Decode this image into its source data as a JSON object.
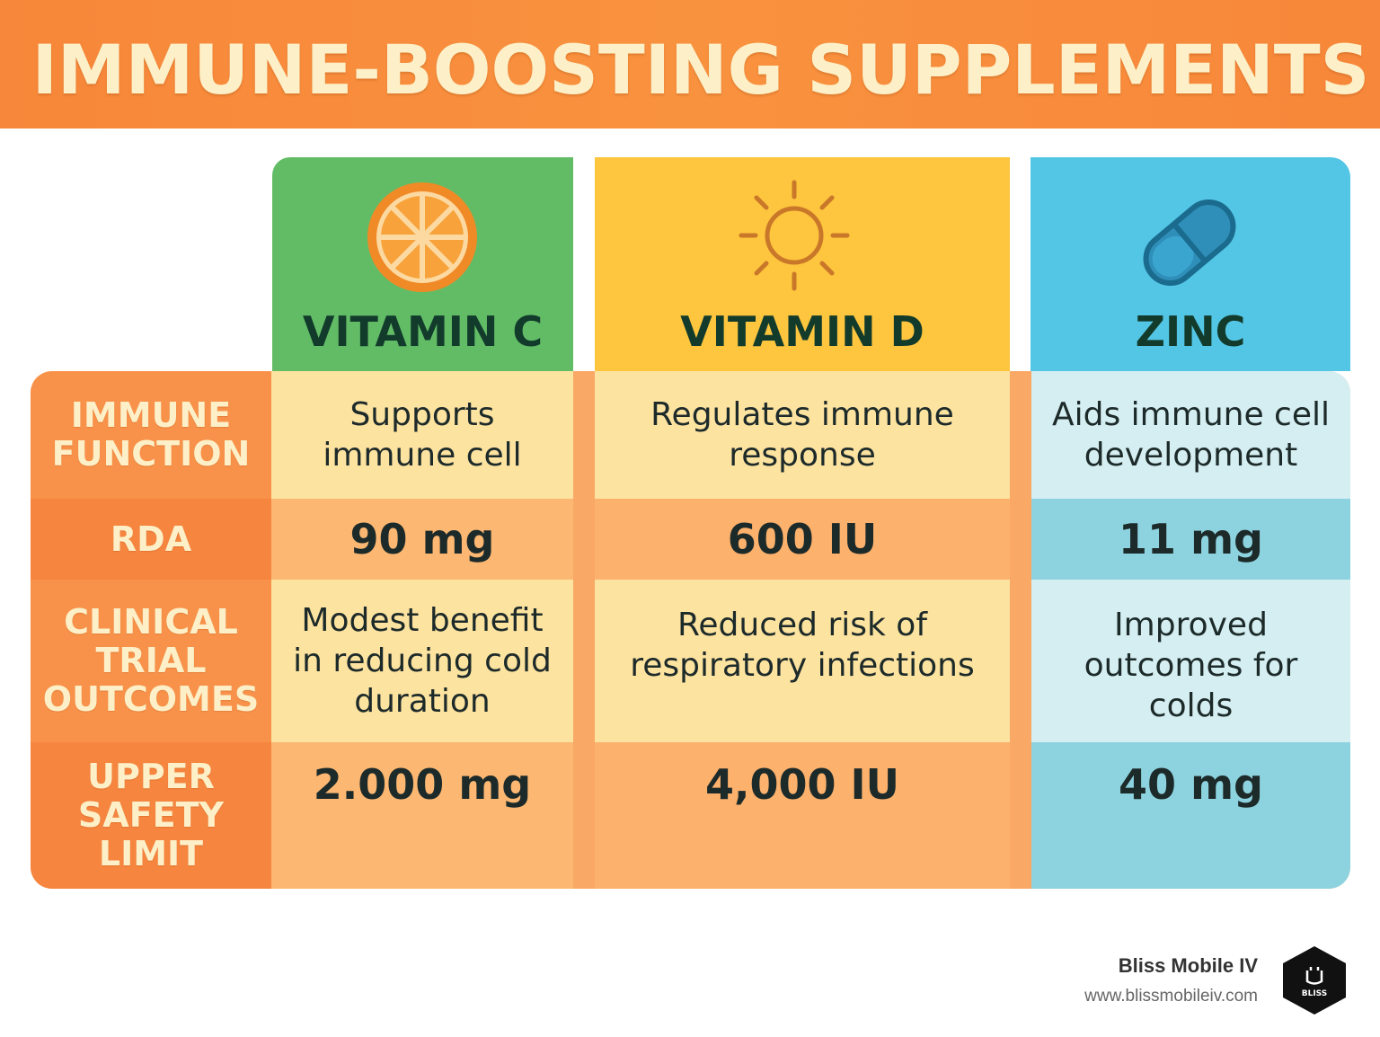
{
  "title": "IMMUNE-BOOSTING SUPPLEMENTS",
  "columns": [
    {
      "name": "VITAMIN C",
      "icon": "orange-slice-icon",
      "header_color": "#62bc66"
    },
    {
      "name": "VITAMIN D",
      "icon": "sun-icon",
      "header_color": "#fec53e"
    },
    {
      "name": "ZINC",
      "icon": "capsule-icon",
      "header_color": "#54c6e5"
    }
  ],
  "rows": [
    {
      "label": "IMMUNE FUNCTION",
      "values": [
        "Supports immune cell",
        "Regulates immune response",
        "Aids immune cell development"
      ]
    },
    {
      "label": "RDA",
      "values": [
        "90 mg",
        "600 IU",
        "11 mg"
      ]
    },
    {
      "label": "CLINICAL TRIAL OUTCOMES",
      "values": [
        "Modest benefit in reducing cold duration",
        "Reduced risk of respiratory infections",
        "Improved outcomes for colds"
      ]
    },
    {
      "label": "UPPER SAFETY LIMIT",
      "values": [
        "2.000 mg",
        "4,000 IU",
        "40 mg"
      ]
    }
  ],
  "brand": {
    "name": "Bliss Mobile IV",
    "url": "www.blissmobileiv.com",
    "logo_text": "BLISS"
  }
}
